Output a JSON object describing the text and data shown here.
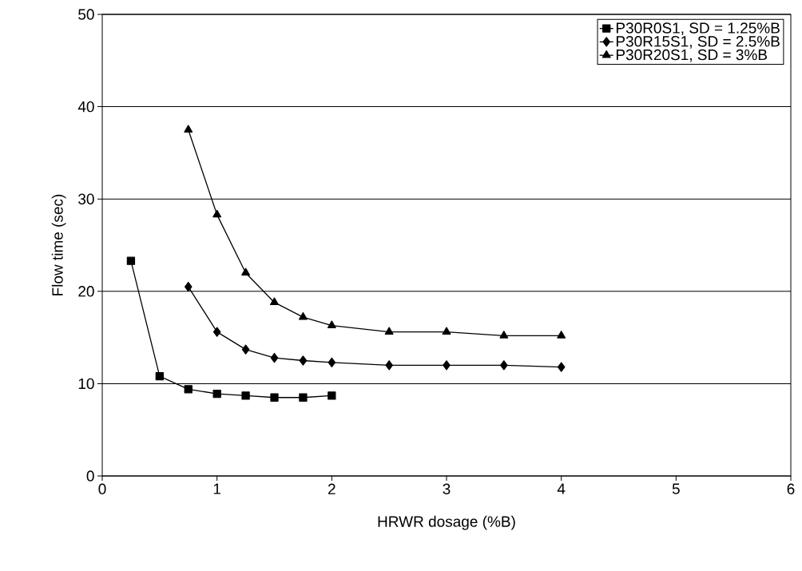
{
  "chart_data": {
    "type": "line",
    "xlabel": "HRWR dosage (%B)",
    "ylabel": "Flow time (sec)",
    "xlim": [
      0,
      6
    ],
    "xticks": [
      0,
      1,
      2,
      3,
      4,
      5,
      6
    ],
    "ylim": [
      0,
      50
    ],
    "yticks": [
      0,
      10,
      20,
      30,
      40,
      50
    ],
    "grid": "y",
    "legend": "top right",
    "series": [
      {
        "name": "P30R0S1, SD = 1.25%B",
        "color": "#000000",
        "marker": "square",
        "x": [
          0.25,
          0.5,
          0.75,
          1,
          1.25,
          1.5,
          1.75,
          2
        ],
        "values": [
          23.3,
          10.8,
          9.4,
          8.9,
          8.7,
          8.5,
          8.5,
          8.7
        ]
      },
      {
        "name": "P30R15S1, SD = 2.5%B",
        "color": "#000000",
        "marker": "diamond",
        "x": [
          0.75,
          1,
          1.25,
          1.5,
          1.75,
          2,
          2.5,
          3,
          3.5,
          4
        ],
        "values": [
          20.5,
          15.6,
          13.7,
          12.8,
          12.5,
          12.3,
          12.0,
          12.0,
          12.0,
          11.8
        ]
      },
      {
        "name": "P30R20S1, SD = 3%B",
        "color": "#000000",
        "marker": "triangle",
        "x": [
          0.75,
          1,
          1.25,
          1.5,
          1.75,
          2,
          2.5,
          3,
          3.5,
          4
        ],
        "values": [
          37.5,
          28.3,
          22.0,
          18.8,
          17.2,
          16.3,
          15.6,
          15.6,
          15.2,
          15.2
        ]
      }
    ]
  }
}
